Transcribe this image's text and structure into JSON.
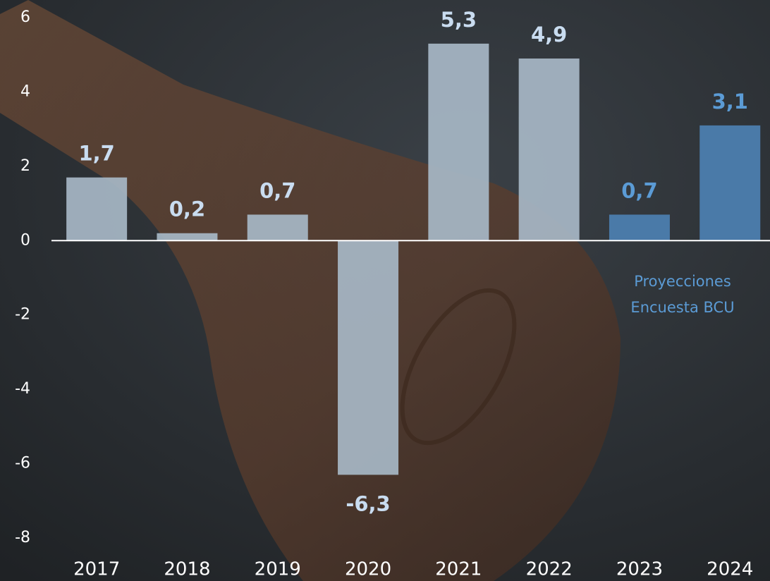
{
  "chart_data": {
    "type": "bar",
    "categories": [
      "2017",
      "2018",
      "2019",
      "2020",
      "2021",
      "2022",
      "2023",
      "2024"
    ],
    "values": [
      1.7,
      0.2,
      0.7,
      -6.3,
      5.3,
      4.9,
      0.7,
      3.1
    ],
    "value_labels": [
      "1,7",
      "0,2",
      "0,7",
      "-6,3",
      "5,3",
      "4,9",
      "0,7",
      "3,1"
    ],
    "colors": [
      "#a7b7c6",
      "#a7b7c6",
      "#a7b7c6",
      "#a7b7c6",
      "#a7b7c6",
      "#a7b7c6",
      "#4a7aa8",
      "#4a7aa8"
    ],
    "label_colors": [
      "#c9dcf0",
      "#c9dcf0",
      "#c9dcf0",
      "#c9dcf0",
      "#c9dcf0",
      "#c9dcf0",
      "#5b9bd5",
      "#5b9bd5"
    ],
    "ylim": [
      -8,
      6
    ],
    "yticks": [
      -8,
      -6,
      -4,
      -2,
      0,
      2,
      4,
      6
    ],
    "annotation": [
      "Proyecciones",
      "Encuesta BCU"
    ]
  }
}
